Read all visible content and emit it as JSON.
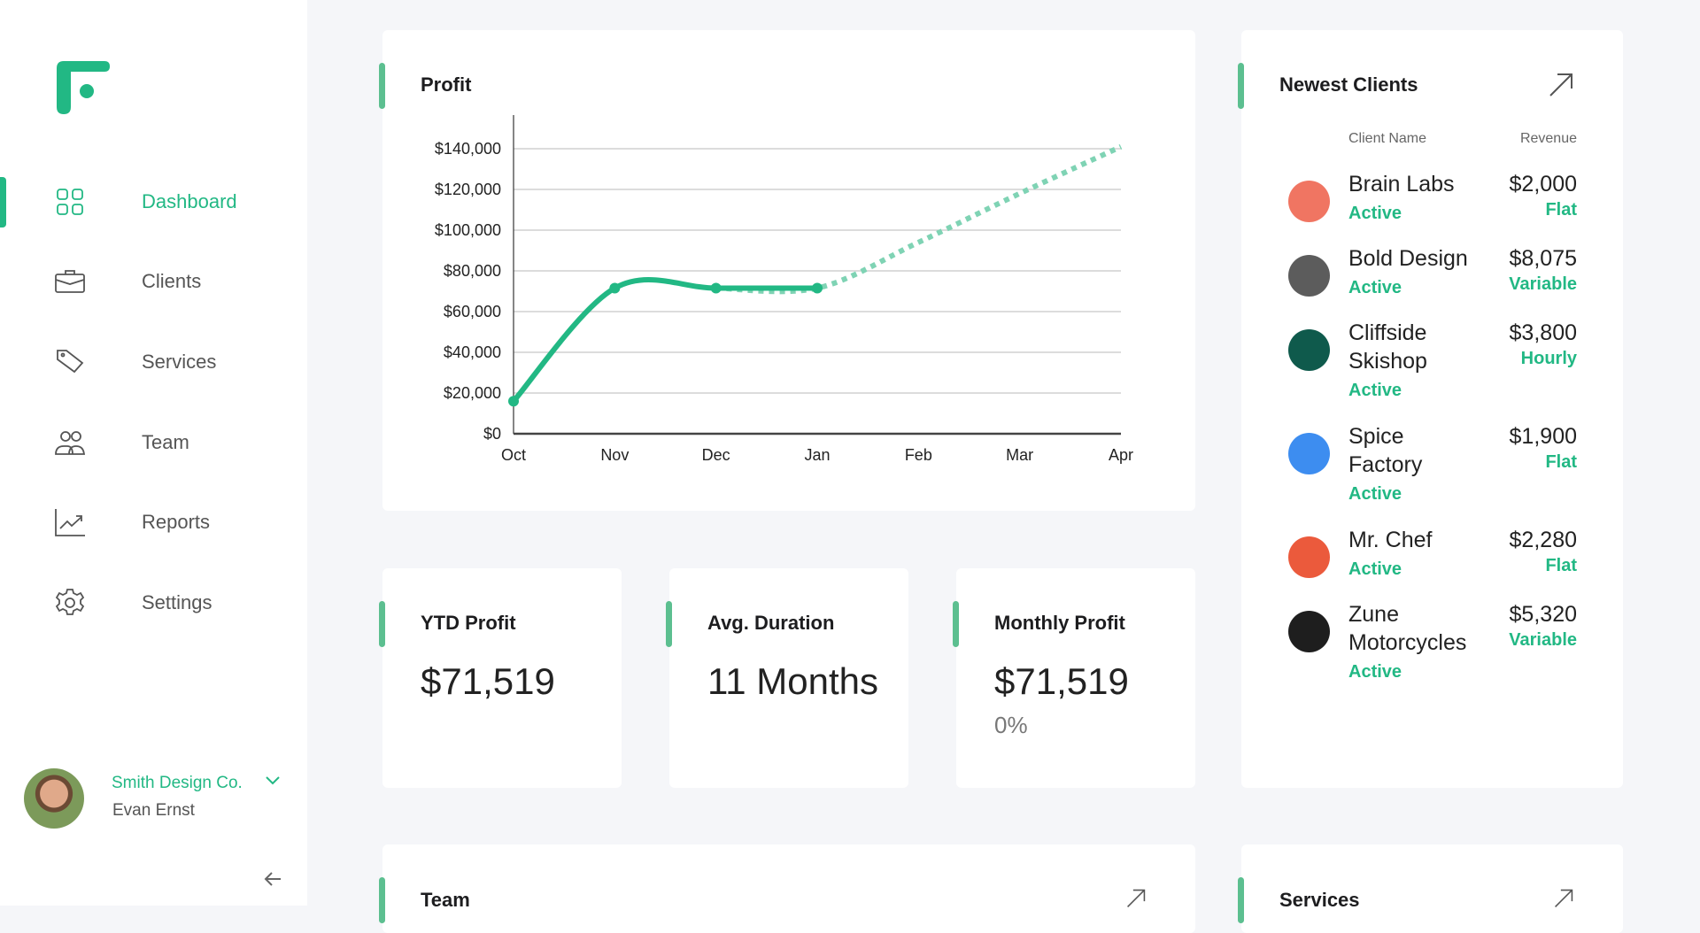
{
  "sidebar": {
    "brand_color": "#22b884",
    "items": [
      {
        "label": "Dashboard",
        "icon": "grid-icon",
        "active": true
      },
      {
        "label": "Clients",
        "icon": "briefcase-icon"
      },
      {
        "label": "Services",
        "icon": "tag-icon"
      },
      {
        "label": "Team",
        "icon": "users-icon"
      },
      {
        "label": "Reports",
        "icon": "chart-trend-icon"
      },
      {
        "label": "Settings",
        "icon": "gear-icon"
      }
    ],
    "user": {
      "company": "Smith Design Co.",
      "name": "Evan Ernst"
    }
  },
  "profit": {
    "title": "Profit"
  },
  "chart_data": {
    "type": "line",
    "title": "Profit",
    "categories": [
      "Oct",
      "Nov",
      "Dec",
      "Jan",
      "Feb",
      "Mar",
      "Apr"
    ],
    "ylim": [
      0,
      140000
    ],
    "yticks": [
      "$0",
      "$20,000",
      "$40,000",
      "$60,000",
      "$80,000",
      "$100,000",
      "$120,000",
      "$140,000"
    ],
    "grid": true,
    "series": [
      {
        "style": "solid",
        "values": [
          16000,
          71519,
          71519,
          71519,
          null,
          null,
          null
        ]
      },
      {
        "style": "dotted",
        "values": [
          null,
          null,
          71519,
          71519,
          94000,
          118000,
          141000
        ]
      }
    ],
    "color": "#22b884"
  },
  "stats": [
    {
      "title": "YTD Profit",
      "value": "$71,519"
    },
    {
      "title": "Avg. Duration",
      "value": "11 Months"
    },
    {
      "title": "Monthly Profit",
      "value": "$71,519",
      "sub": "0%"
    }
  ],
  "clients": {
    "title": "Newest Clients",
    "col_name": "Client Name",
    "col_revenue": "Revenue",
    "rows": [
      {
        "name": "Brain Labs",
        "status": "Active",
        "revenue": "$2,000",
        "type": "Flat",
        "color": "#f07562"
      },
      {
        "name": "Bold Design",
        "status": "Active",
        "revenue": "$8,075",
        "type": "Variable",
        "color": "#5c5c5c"
      },
      {
        "name": "Cliffside Skishop",
        "status": "Active",
        "revenue": "$3,800",
        "type": "Hourly",
        "color": "#0f5a4c"
      },
      {
        "name": "Spice Factory",
        "status": "Active",
        "revenue": "$1,900",
        "type": "Flat",
        "color": "#3d8df0"
      },
      {
        "name": "Mr. Chef",
        "status": "Active",
        "revenue": "$2,280",
        "type": "Flat",
        "color": "#eb5a3c"
      },
      {
        "name": "Zune Motorcycles",
        "status": "Active",
        "revenue": "$5,320",
        "type": "Variable",
        "color": "#1e1e1e"
      }
    ]
  },
  "team": {
    "title": "Team"
  },
  "services": {
    "title": "Services"
  }
}
